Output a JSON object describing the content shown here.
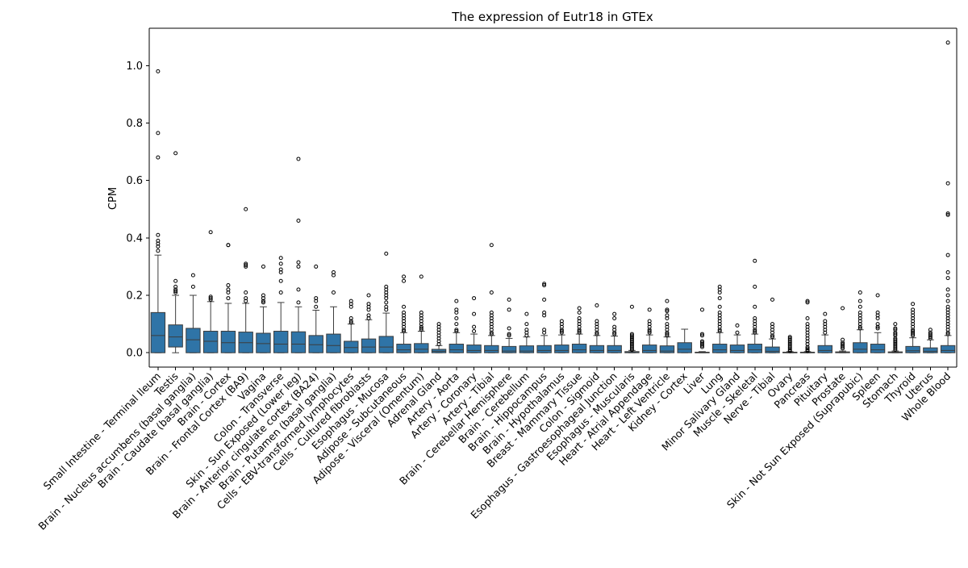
{
  "chart_data": {
    "type": "box",
    "title": "The expression of Eutr18 in GTEx",
    "xlabel": "",
    "ylabel": "CPM",
    "ylim": [
      -0.05,
      1.13
    ],
    "yticks": [
      "0.0",
      "0.2",
      "0.4",
      "0.6",
      "0.8",
      "1.0"
    ],
    "grid": false,
    "box_color": "#2f74a7",
    "categories": [
      {
        "name": "Small Intestine - Terminal Ileum",
        "whislo": 0.0,
        "q1": 0.0,
        "med": 0.06,
        "q3": 0.14,
        "whishi": 0.34,
        "fliers": [
          0.355,
          0.37,
          0.38,
          0.39,
          0.41,
          0.68,
          0.765,
          0.98
        ]
      },
      {
        "name": "Testis",
        "whislo": 0.0,
        "q1": 0.02,
        "med": 0.055,
        "q3": 0.097,
        "whishi": 0.2,
        "fliers": [
          0.21,
          0.215,
          0.22,
          0.23,
          0.25,
          0.695
        ]
      },
      {
        "name": "Brain - Nucleus accumbens (basal ganglia)",
        "whislo": 0.0,
        "q1": 0.0,
        "med": 0.045,
        "q3": 0.085,
        "whishi": 0.2,
        "fliers": [
          0.23,
          0.27
        ]
      },
      {
        "name": "Brain - Caudate (basal ganglia)",
        "whislo": 0.0,
        "q1": 0.0,
        "med": 0.04,
        "q3": 0.075,
        "whishi": 0.178,
        "fliers": [
          0.185,
          0.19,
          0.195,
          0.42
        ]
      },
      {
        "name": "Brain - Cortex",
        "whislo": 0.0,
        "q1": 0.0,
        "med": 0.035,
        "q3": 0.075,
        "whishi": 0.172,
        "fliers": [
          0.19,
          0.21,
          0.22,
          0.235,
          0.375,
          0.375
        ]
      },
      {
        "name": "Brain - Frontal Cortex (BA9)",
        "whislo": 0.0,
        "q1": 0.0,
        "med": 0.035,
        "q3": 0.072,
        "whishi": 0.172,
        "fliers": [
          0.18,
          0.19,
          0.21,
          0.3,
          0.305,
          0.31,
          0.5
        ]
      },
      {
        "name": "Vagina",
        "whislo": 0.0,
        "q1": 0.0,
        "med": 0.032,
        "q3": 0.068,
        "whishi": 0.16,
        "fliers": [
          0.175,
          0.18,
          0.19,
          0.2,
          0.3
        ]
      },
      {
        "name": "Colon - Transverse",
        "whislo": 0.0,
        "q1": 0.0,
        "med": 0.03,
        "q3": 0.075,
        "whishi": 0.175,
        "fliers": [
          0.21,
          0.25,
          0.28,
          0.29,
          0.31,
          0.33
        ]
      },
      {
        "name": "Skin - Sun Exposed (Lower leg)",
        "whislo": 0.0,
        "q1": 0.0,
        "med": 0.03,
        "q3": 0.073,
        "whishi": 0.16,
        "fliers": [
          0.175,
          0.22,
          0.3,
          0.315,
          0.46,
          0.675
        ]
      },
      {
        "name": "Brain - Anterior cingulate cortex (BA24)",
        "whislo": 0.0,
        "q1": 0.0,
        "med": 0.028,
        "q3": 0.06,
        "whishi": 0.148,
        "fliers": [
          0.16,
          0.18,
          0.19,
          0.3
        ]
      },
      {
        "name": "Brain - Putamen (basal ganglia)",
        "whislo": 0.0,
        "q1": 0.0,
        "med": 0.025,
        "q3": 0.065,
        "whishi": 0.16,
        "fliers": [
          0.21,
          0.27,
          0.28
        ]
      },
      {
        "name": "Cells - EBV-transformed lymphocytes",
        "whislo": 0.0,
        "q1": 0.0,
        "med": 0.018,
        "q3": 0.04,
        "whishi": 0.1,
        "fliers": [
          0.105,
          0.11,
          0.12,
          0.16,
          0.17,
          0.18
        ]
      },
      {
        "name": "Cells - Cultured fibroblasts",
        "whislo": 0.0,
        "q1": 0.0,
        "med": 0.02,
        "q3": 0.048,
        "whishi": 0.115,
        "fliers": [
          0.12,
          0.13,
          0.15,
          0.16,
          0.17,
          0.2
        ]
      },
      {
        "name": "Esophagus - Mucosa",
        "whislo": 0.0,
        "q1": 0.0,
        "med": 0.02,
        "q3": 0.057,
        "whishi": 0.138,
        "fliers": [
          0.15,
          0.16,
          0.175,
          0.19,
          0.2,
          0.21,
          0.22,
          0.23,
          0.345
        ]
      },
      {
        "name": "Adipose - Subcutaneous",
        "whislo": 0.0,
        "q1": 0.0,
        "med": 0.01,
        "q3": 0.03,
        "whishi": 0.07,
        "fliers": [
          0.075,
          0.08,
          0.09,
          0.1,
          0.11,
          0.12,
          0.13,
          0.14,
          0.16,
          0.25,
          0.265
        ]
      },
      {
        "name": "Adipose - Visceral (Omentum)",
        "whislo": 0.0,
        "q1": 0.0,
        "med": 0.012,
        "q3": 0.032,
        "whishi": 0.075,
        "fliers": [
          0.08,
          0.085,
          0.09,
          0.1,
          0.11,
          0.12,
          0.13,
          0.14,
          0.265
        ]
      },
      {
        "name": "Adrenal Gland",
        "whislo": 0.0,
        "q1": 0.0,
        "med": 0.005,
        "q3": 0.012,
        "whishi": 0.025,
        "fliers": [
          0.03,
          0.04,
          0.05,
          0.06,
          0.07,
          0.08,
          0.09,
          0.1
        ]
      },
      {
        "name": "Artery - Aorta",
        "whislo": 0.0,
        "q1": 0.0,
        "med": 0.01,
        "q3": 0.03,
        "whishi": 0.07,
        "fliers": [
          0.075,
          0.08,
          0.1,
          0.12,
          0.14,
          0.15,
          0.18
        ]
      },
      {
        "name": "Artery - Coronary",
        "whislo": 0.0,
        "q1": 0.0,
        "med": 0.008,
        "q3": 0.027,
        "whishi": 0.065,
        "fliers": [
          0.075,
          0.09,
          0.135,
          0.19
        ]
      },
      {
        "name": "Artery - Tibial",
        "whislo": 0.0,
        "q1": 0.0,
        "med": 0.008,
        "q3": 0.025,
        "whishi": 0.06,
        "fliers": [
          0.065,
          0.07,
          0.08,
          0.09,
          0.1,
          0.11,
          0.12,
          0.13,
          0.14,
          0.21,
          0.375
        ]
      },
      {
        "name": "Brain - Cerebellar Hemisphere",
        "whislo": 0.0,
        "q1": 0.0,
        "med": 0.006,
        "q3": 0.022,
        "whishi": 0.05,
        "fliers": [
          0.06,
          0.065,
          0.085,
          0.15,
          0.185
        ]
      },
      {
        "name": "Brain - Cerebellum",
        "whislo": 0.0,
        "q1": 0.0,
        "med": 0.006,
        "q3": 0.024,
        "whishi": 0.055,
        "fliers": [
          0.06,
          0.07,
          0.08,
          0.1,
          0.135
        ]
      },
      {
        "name": "Brain - Hippocampus",
        "whislo": 0.0,
        "q1": 0.0,
        "med": 0.008,
        "q3": 0.025,
        "whishi": 0.06,
        "fliers": [
          0.07,
          0.08,
          0.13,
          0.14,
          0.185,
          0.235,
          0.24
        ]
      },
      {
        "name": "Brain - Hypothalamus",
        "whislo": 0.0,
        "q1": 0.0,
        "med": 0.008,
        "q3": 0.027,
        "whishi": 0.062,
        "fliers": [
          0.07,
          0.075,
          0.08,
          0.09,
          0.1,
          0.11
        ]
      },
      {
        "name": "Breast - Mammary Tissue",
        "whislo": 0.0,
        "q1": 0.0,
        "med": 0.01,
        "q3": 0.03,
        "whishi": 0.065,
        "fliers": [
          0.07,
          0.075,
          0.08,
          0.09,
          0.1,
          0.11,
          0.12,
          0.14,
          0.155
        ]
      },
      {
        "name": "Colon - Sigmoid",
        "whislo": 0.0,
        "q1": 0.0,
        "med": 0.008,
        "q3": 0.025,
        "whishi": 0.06,
        "fliers": [
          0.065,
          0.07,
          0.08,
          0.09,
          0.1,
          0.11,
          0.165
        ]
      },
      {
        "name": "Esophagus - Gastroesophageal Junction",
        "whislo": 0.0,
        "q1": 0.0,
        "med": 0.008,
        "q3": 0.025,
        "whishi": 0.058,
        "fliers": [
          0.065,
          0.07,
          0.08,
          0.09,
          0.12,
          0.135
        ]
      },
      {
        "name": "Esophagus - Muscularis",
        "whislo": 0.0,
        "q1": 0.0,
        "med": 0.001,
        "q3": 0.004,
        "whishi": 0.008,
        "fliers": [
          0.01,
          0.015,
          0.02,
          0.025,
          0.03,
          0.035,
          0.04,
          0.045,
          0.05,
          0.055,
          0.06,
          0.065,
          0.16
        ]
      },
      {
        "name": "Heart - Atrial Appendage",
        "whislo": 0.0,
        "q1": 0.0,
        "med": 0.008,
        "q3": 0.027,
        "whishi": 0.062,
        "fliers": [
          0.07,
          0.075,
          0.08,
          0.09,
          0.1,
          0.11,
          0.15
        ]
      },
      {
        "name": "Heart - Left Ventricle",
        "whislo": 0.0,
        "q1": 0.0,
        "med": 0.006,
        "q3": 0.024,
        "whishi": 0.055,
        "fliers": [
          0.06,
          0.065,
          0.07,
          0.08,
          0.09,
          0.1,
          0.12,
          0.13,
          0.145,
          0.15,
          0.18
        ]
      },
      {
        "name": "Kidney - Cortex",
        "whislo": 0.0,
        "q1": 0.0,
        "med": 0.012,
        "q3": 0.035,
        "whishi": 0.082,
        "fliers": []
      },
      {
        "name": "Liver",
        "whislo": 0.0,
        "q1": 0.0,
        "med": 0.001,
        "q3": 0.002,
        "whishi": 0.004,
        "fliers": [
          0.02,
          0.025,
          0.03,
          0.035,
          0.04,
          0.06,
          0.065,
          0.15
        ]
      },
      {
        "name": "Lung",
        "whislo": 0.0,
        "q1": 0.0,
        "med": 0.01,
        "q3": 0.03,
        "whishi": 0.07,
        "fliers": [
          0.075,
          0.08,
          0.09,
          0.1,
          0.11,
          0.12,
          0.13,
          0.14,
          0.16,
          0.19,
          0.21,
          0.22,
          0.23
        ]
      },
      {
        "name": "Minor Salivary Gland",
        "whislo": 0.0,
        "q1": 0.0,
        "med": 0.008,
        "q3": 0.027,
        "whishi": 0.062,
        "fliers": [
          0.07,
          0.095
        ]
      },
      {
        "name": "Muscle - Skeletal",
        "whislo": 0.0,
        "q1": 0.0,
        "med": 0.01,
        "q3": 0.03,
        "whishi": 0.065,
        "fliers": [
          0.07,
          0.075,
          0.08,
          0.09,
          0.1,
          0.11,
          0.12,
          0.16,
          0.23,
          0.32
        ]
      },
      {
        "name": "Nerve - Tibial",
        "whislo": 0.0,
        "q1": 0.0,
        "med": 0.005,
        "q3": 0.02,
        "whishi": 0.048,
        "fliers": [
          0.055,
          0.06,
          0.07,
          0.08,
          0.09,
          0.1,
          0.185
        ]
      },
      {
        "name": "Ovary",
        "whislo": 0.0,
        "q1": 0.0,
        "med": 0.001,
        "q3": 0.002,
        "whishi": 0.004,
        "fliers": [
          0.006,
          0.01,
          0.015,
          0.02,
          0.025,
          0.03,
          0.035,
          0.04,
          0.045,
          0.05,
          0.055
        ]
      },
      {
        "name": "Pancreas",
        "whislo": 0.0,
        "q1": 0.0,
        "med": 0.001,
        "q3": 0.002,
        "whishi": 0.004,
        "fliers": [
          0.006,
          0.01,
          0.015,
          0.02,
          0.03,
          0.04,
          0.05,
          0.06,
          0.07,
          0.08,
          0.09,
          0.1,
          0.12,
          0.175,
          0.18
        ]
      },
      {
        "name": "Pituitary",
        "whislo": 0.0,
        "q1": 0.0,
        "med": 0.008,
        "q3": 0.025,
        "whishi": 0.062,
        "fliers": [
          0.07,
          0.08,
          0.09,
          0.1,
          0.11,
          0.135
        ]
      },
      {
        "name": "Prostate",
        "whislo": 0.0,
        "q1": 0.0,
        "med": 0.001,
        "q3": 0.003,
        "whishi": 0.006,
        "fliers": [
          0.015,
          0.02,
          0.025,
          0.03,
          0.035,
          0.045,
          0.155
        ]
      },
      {
        "name": "Skin - Not Sun Exposed (Suprapubic)",
        "whislo": 0.0,
        "q1": 0.0,
        "med": 0.012,
        "q3": 0.035,
        "whishi": 0.08,
        "fliers": [
          0.085,
          0.09,
          0.1,
          0.11,
          0.12,
          0.13,
          0.14,
          0.16,
          0.18,
          0.21
        ]
      },
      {
        "name": "Spleen",
        "whislo": 0.0,
        "q1": 0.0,
        "med": 0.01,
        "q3": 0.03,
        "whishi": 0.07,
        "fliers": [
          0.085,
          0.09,
          0.1,
          0.12,
          0.13,
          0.14,
          0.2
        ]
      },
      {
        "name": "Stomach",
        "whislo": 0.0,
        "q1": 0.0,
        "med": 0.001,
        "q3": 0.003,
        "whishi": 0.006,
        "fliers": [
          0.01,
          0.015,
          0.02,
          0.025,
          0.03,
          0.035,
          0.04,
          0.045,
          0.05,
          0.06,
          0.065,
          0.07,
          0.08,
          0.085,
          0.1
        ]
      },
      {
        "name": "Thyroid",
        "whislo": 0.0,
        "q1": 0.0,
        "med": 0.007,
        "q3": 0.022,
        "whishi": 0.052,
        "fliers": [
          0.06,
          0.065,
          0.07,
          0.075,
          0.08,
          0.09,
          0.1,
          0.11,
          0.12,
          0.13,
          0.14,
          0.15,
          0.17
        ]
      },
      {
        "name": "Uterus",
        "whislo": 0.0,
        "q1": 0.0,
        "med": 0.005,
        "q3": 0.017,
        "whishi": 0.045,
        "fliers": [
          0.05,
          0.055,
          0.06,
          0.065,
          0.07,
          0.08
        ]
      },
      {
        "name": "Whole Blood",
        "whislo": 0.0,
        "q1": 0.0,
        "med": 0.008,
        "q3": 0.025,
        "whishi": 0.06,
        "fliers": [
          0.065,
          0.07,
          0.08,
          0.09,
          0.1,
          0.11,
          0.12,
          0.13,
          0.14,
          0.15,
          0.16,
          0.18,
          0.2,
          0.22,
          0.26,
          0.28,
          0.34,
          0.48,
          0.485,
          0.59,
          1.08
        ]
      }
    ]
  }
}
